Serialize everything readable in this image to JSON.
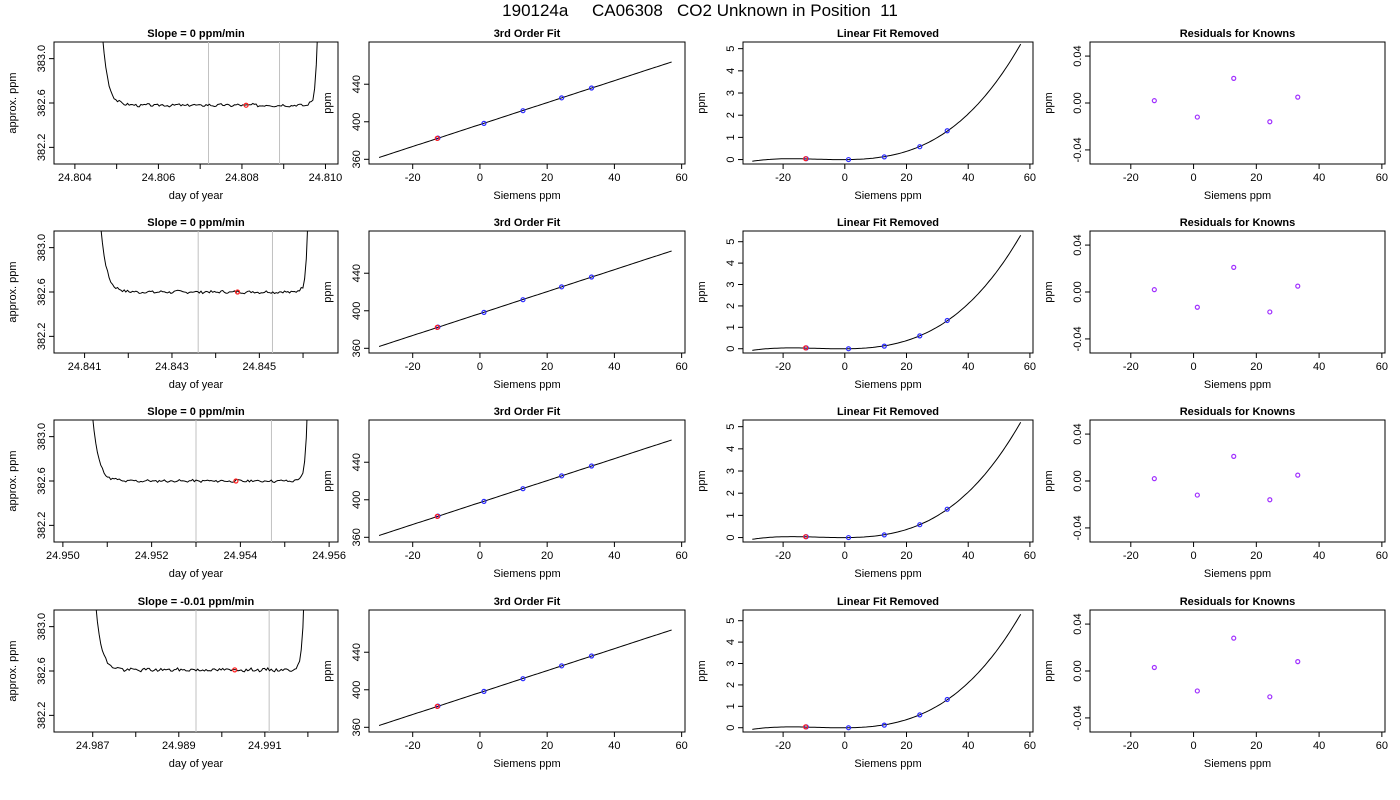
{
  "title": "190124a     CA06308   CO2 Unknown in Position  11",
  "colors": {
    "curve": "#000000",
    "vline": "#c0c0c0",
    "known": "#2b2bff",
    "unknown": "#ff2020",
    "residual": "#a030ff"
  },
  "chart_data": [
    {
      "type": "line",
      "title": "Slope =  0  ppm/min",
      "xlabel": "day of year",
      "ylabel": "approx. ppm",
      "xlim": [
        24.8035,
        24.8103
      ],
      "ylim": [
        382.05,
        383.15
      ],
      "xticks": [
        24.804,
        24.806,
        24.808,
        24.81
      ],
      "xtick_labels": [
        "24.804",
        "24.806",
        "24.808",
        "24.810"
      ],
      "xminor": [
        24.805,
        24.807,
        24.809
      ],
      "yticks": [
        382.2,
        382.6,
        383.0
      ],
      "ytick_labels": [
        "382.2",
        "382.6",
        "383.0"
      ],
      "vlines": [
        24.8072,
        24.8089
      ],
      "steady": 382.58,
      "rise_left": 24.805,
      "rise_right": 24.8097,
      "noise": 0.012,
      "seed": 3,
      "marker": {
        "x": 24.8081,
        "y": 382.58
      }
    },
    {
      "type": "line",
      "title": "3rd Order Fit",
      "xlabel": "Siemens ppm",
      "ylabel": "ppm",
      "xlim": [
        -33,
        61
      ],
      "ylim": [
        355,
        485
      ],
      "xticks": [
        -20,
        0,
        20,
        40,
        60
      ],
      "xtick_labels": [
        "-20",
        "0",
        "20",
        "40",
        "60"
      ],
      "yticks": [
        360,
        400,
        440
      ],
      "ytick_labels": [
        "360",
        "400",
        "440"
      ],
      "fit_range": [
        -30,
        57
      ],
      "knowns": [
        [
          -12.5,
          382.6
        ],
        [
          1.2,
          398.3
        ],
        [
          12.8,
          411.8
        ],
        [
          24.3,
          425.5
        ],
        [
          33.2,
          436.0
        ]
      ],
      "unknown": [
        -12.7,
        382.3
      ]
    },
    {
      "type": "line",
      "title": "Linear Fit Removed",
      "xlabel": "Siemens ppm",
      "ylabel": "ppm",
      "xlim": [
        -33,
        61
      ],
      "ylim": [
        -0.2,
        5.3
      ],
      "xticks": [
        -20,
        0,
        20,
        40,
        60
      ],
      "xtick_labels": [
        "-20",
        "0",
        "20",
        "40",
        "60"
      ],
      "yticks": [
        0,
        1,
        2,
        3,
        4,
        5
      ],
      "ytick_labels": [
        "0",
        "1",
        "2",
        "3",
        "4",
        "5"
      ],
      "fit_range": [
        -30,
        57
      ],
      "knowns": [
        [
          -12.5,
          0.04
        ],
        [
          1.2,
          0.0
        ],
        [
          12.8,
          0.12
        ],
        [
          24.3,
          0.58
        ],
        [
          33.2,
          1.3
        ]
      ],
      "unknown": [
        -12.7,
        0.04
      ]
    },
    {
      "type": "scatter",
      "title": "Residuals for Knowns",
      "xlabel": "Siemens ppm",
      "ylabel": "ppm",
      "xlim": [
        -33,
        61
      ],
      "ylim": [
        -0.052,
        0.052
      ],
      "xticks": [
        -20,
        0,
        20,
        40,
        60
      ],
      "xtick_labels": [
        "-20",
        "0",
        "20",
        "40",
        "60"
      ],
      "yticks": [
        -0.04,
        0.0,
        0.04
      ],
      "ytick_labels": [
        "-0.04",
        "0.00",
        "0.04"
      ],
      "knowns": [
        [
          -12.5,
          0.002
        ],
        [
          1.2,
          -0.012
        ],
        [
          12.8,
          0.021
        ],
        [
          24.3,
          -0.016
        ],
        [
          33.2,
          0.005
        ]
      ]
    },
    {
      "type": "line",
      "title": "Slope =  0  ppm/min",
      "xlabel": "day of year",
      "ylabel": "approx. ppm",
      "xlim": [
        24.8403,
        24.8468
      ],
      "ylim": [
        382.05,
        383.15
      ],
      "xticks": [
        24.841,
        24.843,
        24.845
      ],
      "xtick_labels": [
        "24.841",
        "24.843",
        "24.845"
      ],
      "xminor": [
        24.842,
        24.844,
        24.846
      ],
      "yticks": [
        382.2,
        382.6,
        383.0
      ],
      "ytick_labels": [
        "382.2",
        "382.6",
        "383.0"
      ],
      "vlines": [
        24.8436,
        24.8453
      ],
      "steady": 382.6,
      "rise_left": 24.8417,
      "rise_right": 24.846,
      "noise": 0.012,
      "seed": 7,
      "marker": {
        "x": 24.8445,
        "y": 382.6
      }
    },
    {
      "type": "line",
      "title": "3rd Order Fit",
      "xlabel": "Siemens ppm",
      "ylabel": "ppm",
      "xlim": [
        -33,
        61
      ],
      "ylim": [
        355,
        485
      ],
      "xticks": [
        -20,
        0,
        20,
        40,
        60
      ],
      "xtick_labels": [
        "-20",
        "0",
        "20",
        "40",
        "60"
      ],
      "yticks": [
        360,
        400,
        440
      ],
      "ytick_labels": [
        "360",
        "400",
        "440"
      ],
      "fit_range": [
        -30,
        57
      ],
      "knowns": [
        [
          -12.5,
          382.6
        ],
        [
          1.2,
          398.3
        ],
        [
          12.8,
          411.8
        ],
        [
          24.3,
          425.5
        ],
        [
          33.2,
          436.0
        ]
      ],
      "unknown": [
        -12.7,
        382.3
      ]
    },
    {
      "type": "line",
      "title": "Linear Fit Removed",
      "xlabel": "Siemens ppm",
      "ylabel": "ppm",
      "xlim": [
        -33,
        61
      ],
      "ylim": [
        -0.2,
        5.5
      ],
      "xticks": [
        -20,
        0,
        20,
        40,
        60
      ],
      "xtick_labels": [
        "-20",
        "0",
        "20",
        "40",
        "60"
      ],
      "yticks": [
        0,
        1,
        2,
        3,
        4,
        5
      ],
      "ytick_labels": [
        "0",
        "1",
        "2",
        "3",
        "4",
        "5"
      ],
      "fit_range": [
        -30,
        57
      ],
      "knowns": [
        [
          -12.5,
          0.04
        ],
        [
          1.2,
          0.0
        ],
        [
          12.8,
          0.12
        ],
        [
          24.3,
          0.6
        ],
        [
          33.2,
          1.32
        ]
      ],
      "unknown": [
        -12.7,
        0.04
      ]
    },
    {
      "type": "scatter",
      "title": "Residuals for Knowns",
      "xlabel": "Siemens ppm",
      "ylabel": "ppm",
      "xlim": [
        -33,
        61
      ],
      "ylim": [
        -0.052,
        0.052
      ],
      "xticks": [
        -20,
        0,
        20,
        40,
        60
      ],
      "xtick_labels": [
        "-20",
        "0",
        "20",
        "40",
        "60"
      ],
      "yticks": [
        -0.04,
        0.0,
        0.04
      ],
      "ytick_labels": [
        "-0.04",
        "0.00",
        "0.04"
      ],
      "knowns": [
        [
          -12.5,
          0.002
        ],
        [
          1.2,
          -0.013
        ],
        [
          12.8,
          0.021
        ],
        [
          24.3,
          -0.017
        ],
        [
          33.2,
          0.005
        ]
      ]
    },
    {
      "type": "line",
      "title": "Slope =  0  ppm/min",
      "xlabel": "day of year",
      "ylabel": "approx. ppm",
      "xlim": [
        24.9498,
        24.9562
      ],
      "ylim": [
        382.05,
        383.15
      ],
      "xticks": [
        24.95,
        24.952,
        24.954,
        24.956
      ],
      "xtick_labels": [
        "24.950",
        "24.952",
        "24.954",
        "24.956"
      ],
      "xminor": [
        24.951,
        24.953,
        24.955
      ],
      "yticks": [
        382.2,
        382.6,
        383.0
      ],
      "ytick_labels": [
        "382.2",
        "382.6",
        "383.0"
      ],
      "vlines": [
        24.953,
        24.9547
      ],
      "steady": 382.6,
      "rise_left": 24.951,
      "rise_right": 24.9554,
      "noise": 0.01,
      "seed": 11,
      "marker": {
        "x": 24.9539,
        "y": 382.6
      }
    },
    {
      "type": "line",
      "title": "3rd Order Fit",
      "xlabel": "Siemens ppm",
      "ylabel": "ppm",
      "xlim": [
        -33,
        61
      ],
      "ylim": [
        355,
        485
      ],
      "xticks": [
        -20,
        0,
        20,
        40,
        60
      ],
      "xtick_labels": [
        "-20",
        "0",
        "20",
        "40",
        "60"
      ],
      "yticks": [
        360,
        400,
        440
      ],
      "ytick_labels": [
        "360",
        "400",
        "440"
      ],
      "fit_range": [
        -30,
        57
      ],
      "knowns": [
        [
          -12.5,
          382.6
        ],
        [
          1.2,
          398.3
        ],
        [
          12.8,
          411.8
        ],
        [
          24.3,
          425.5
        ],
        [
          33.2,
          436.0
        ]
      ],
      "unknown": [
        -12.7,
        382.3
      ]
    },
    {
      "type": "line",
      "title": "Linear Fit Removed",
      "xlabel": "Siemens ppm",
      "ylabel": "ppm",
      "xlim": [
        -33,
        61
      ],
      "ylim": [
        -0.2,
        5.3
      ],
      "xticks": [
        -20,
        0,
        20,
        40,
        60
      ],
      "xtick_labels": [
        "-20",
        "0",
        "20",
        "40",
        "60"
      ],
      "yticks": [
        0,
        1,
        2,
        3,
        4,
        5
      ],
      "ytick_labels": [
        "0",
        "1",
        "2",
        "3",
        "4",
        "5"
      ],
      "fit_range": [
        -30,
        57
      ],
      "knowns": [
        [
          -12.5,
          0.04
        ],
        [
          1.2,
          0.0
        ],
        [
          12.8,
          0.12
        ],
        [
          24.3,
          0.58
        ],
        [
          33.2,
          1.28
        ]
      ],
      "unknown": [
        -12.7,
        0.04
      ]
    },
    {
      "type": "scatter",
      "title": "Residuals for Knowns",
      "xlabel": "Siemens ppm",
      "ylabel": "ppm",
      "xlim": [
        -33,
        61
      ],
      "ylim": [
        -0.052,
        0.052
      ],
      "xticks": [
        -20,
        0,
        20,
        40,
        60
      ],
      "xtick_labels": [
        "-20",
        "0",
        "20",
        "40",
        "60"
      ],
      "yticks": [
        -0.04,
        0.0,
        0.04
      ],
      "ytick_labels": [
        "-0.04",
        "0.00",
        "0.04"
      ],
      "knowns": [
        [
          -12.5,
          0.002
        ],
        [
          1.2,
          -0.012
        ],
        [
          12.8,
          0.021
        ],
        [
          24.3,
          -0.016
        ],
        [
          33.2,
          0.005
        ]
      ]
    },
    {
      "type": "line",
      "title": "Slope =  -0.01  ppm/min",
      "xlabel": "day of year",
      "ylabel": "approx. ppm",
      "xlim": [
        24.9861,
        24.9927
      ],
      "ylim": [
        382.05,
        383.15
      ],
      "xticks": [
        24.987,
        24.989,
        24.991
      ],
      "xtick_labels": [
        "24.987",
        "24.989",
        "24.991"
      ],
      "xminor": [
        24.988,
        24.99,
        24.992
      ],
      "yticks": [
        382.2,
        382.6,
        383.0
      ],
      "ytick_labels": [
        "382.2",
        "382.6",
        "383.0"
      ],
      "vlines": [
        24.9894,
        24.9911
      ],
      "steady": 382.61,
      "rise_left": 24.9874,
      "rise_right": 24.9918,
      "noise": 0.014,
      "seed": 19,
      "marker": {
        "x": 24.9903,
        "y": 382.61
      }
    },
    {
      "type": "line",
      "title": "3rd Order Fit",
      "xlabel": "Siemens ppm",
      "ylabel": "ppm",
      "xlim": [
        -33,
        61
      ],
      "ylim": [
        355,
        485
      ],
      "xticks": [
        -20,
        0,
        20,
        40,
        60
      ],
      "xtick_labels": [
        "-20",
        "0",
        "20",
        "40",
        "60"
      ],
      "yticks": [
        360,
        400,
        440
      ],
      "ytick_labels": [
        "360",
        "400",
        "440"
      ],
      "fit_range": [
        -30,
        57
      ],
      "knowns": [
        [
          -12.5,
          382.6
        ],
        [
          1.2,
          398.3
        ],
        [
          12.8,
          411.8
        ],
        [
          24.3,
          425.5
        ],
        [
          33.2,
          436.0
        ]
      ],
      "unknown": [
        -12.7,
        382.3
      ]
    },
    {
      "type": "line",
      "title": "Linear Fit Removed",
      "xlabel": "Siemens ppm",
      "ylabel": "ppm",
      "xlim": [
        -33,
        61
      ],
      "ylim": [
        -0.2,
        5.5
      ],
      "xticks": [
        -20,
        0,
        20,
        40,
        60
      ],
      "xtick_labels": [
        "-20",
        "0",
        "20",
        "40",
        "60"
      ],
      "yticks": [
        0,
        1,
        2,
        3,
        4,
        5
      ],
      "ytick_labels": [
        "0",
        "1",
        "2",
        "3",
        "4",
        "5"
      ],
      "fit_range": [
        -30,
        57
      ],
      "knowns": [
        [
          -12.5,
          0.04
        ],
        [
          1.2,
          0.0
        ],
        [
          12.8,
          0.12
        ],
        [
          24.3,
          0.6
        ],
        [
          33.2,
          1.32
        ]
      ],
      "unknown": [
        -12.7,
        0.04
      ]
    },
    {
      "type": "scatter",
      "title": "Residuals for Knowns",
      "xlabel": "Siemens ppm",
      "ylabel": "ppm",
      "xlim": [
        -33,
        61
      ],
      "ylim": [
        -0.052,
        0.052
      ],
      "xticks": [
        -20,
        0,
        20,
        40,
        60
      ],
      "xtick_labels": [
        "-20",
        "0",
        "20",
        "40",
        "60"
      ],
      "yticks": [
        -0.04,
        0.0,
        0.04
      ],
      "ytick_labels": [
        "-0.04",
        "0.00",
        "0.04"
      ],
      "knowns": [
        [
          -12.5,
          0.003
        ],
        [
          1.2,
          -0.017
        ],
        [
          12.8,
          0.028
        ],
        [
          24.3,
          -0.022
        ],
        [
          33.2,
          0.008
        ]
      ]
    }
  ]
}
